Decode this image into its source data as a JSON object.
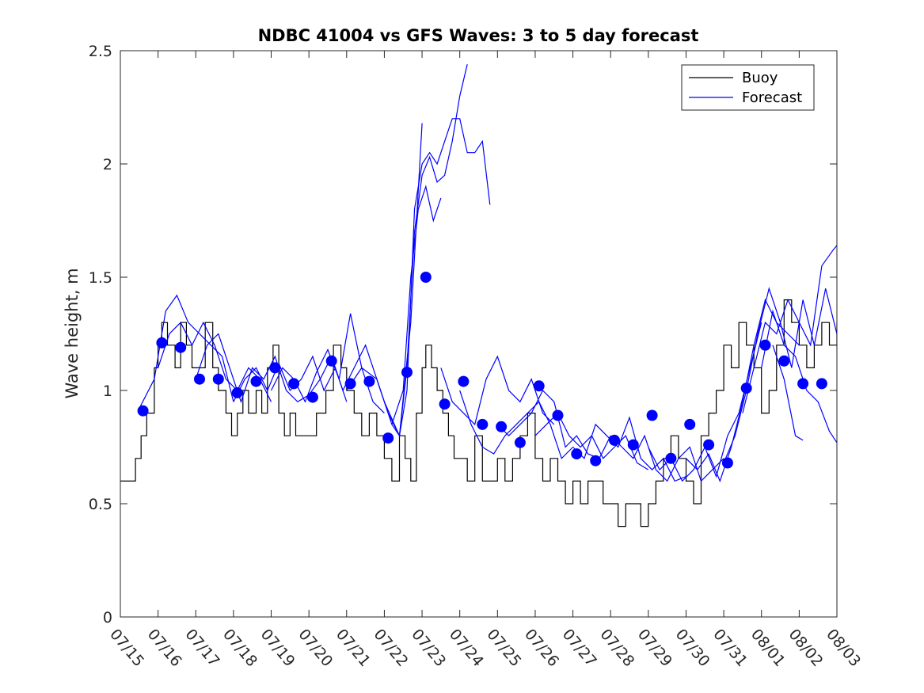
{
  "chart_data": {
    "type": "line",
    "title": "NDBC 41004 vs GFS Waves: 3 to 5 day forecast",
    "xlabel": "",
    "ylabel": "Wave height, m",
    "ylim": [
      0,
      2.5
    ],
    "xlim": [
      "07/15",
      "08/03"
    ],
    "yticks": [
      "0",
      "0.5",
      "1",
      "1.5",
      "2",
      "2.5"
    ],
    "xticks": [
      "07/15",
      "07/16",
      "07/17",
      "07/18",
      "07/19",
      "07/20",
      "07/21",
      "07/22",
      "07/23",
      "07/24",
      "07/25",
      "07/26",
      "07/27",
      "07/28",
      "07/29",
      "07/30",
      "07/31",
      "08/01",
      "08/02",
      "08/03"
    ],
    "legend": {
      "position": "top-right",
      "entries": [
        "Buoy",
        "Forecast"
      ]
    },
    "colors": {
      "buoy": "#000000",
      "forecast": "#0000ff"
    },
    "series": [
      {
        "name": "Buoy",
        "style": "line",
        "x_day": [
          0,
          0.25,
          0.4,
          0.55,
          0.7,
          0.9,
          1.0,
          1.1,
          1.25,
          1.45,
          1.6,
          1.75,
          1.9,
          2.05,
          2.25,
          2.45,
          2.6,
          2.8,
          2.95,
          3.1,
          3.25,
          3.4,
          3.6,
          3.75,
          3.9,
          4.05,
          4.2,
          4.35,
          4.5,
          4.65,
          4.8,
          5.0,
          5.2,
          5.45,
          5.65,
          5.85,
          6.0,
          6.2,
          6.4,
          6.6,
          6.8,
          7.0,
          7.2,
          7.4,
          7.55,
          7.7,
          7.85,
          8.0,
          8.1,
          8.25,
          8.4,
          8.55,
          8.7,
          8.85,
          9.0,
          9.2,
          9.4,
          9.6,
          9.8,
          10.0,
          10.2,
          10.4,
          10.6,
          10.8,
          11.0,
          11.2,
          11.4,
          11.6,
          11.8,
          12.0,
          12.2,
          12.4,
          12.6,
          12.8,
          13.0,
          13.2,
          13.4,
          13.6,
          13.8,
          14.0,
          14.2,
          14.4,
          14.6,
          14.8,
          15.0,
          15.2,
          15.4,
          15.6,
          15.8,
          16.0,
          16.2,
          16.4,
          16.6,
          16.8,
          17.0,
          17.2,
          17.4,
          17.6,
          17.8,
          18.0,
          18.2,
          18.4,
          18.6,
          18.8,
          19.0
        ],
        "y": [
          0.6,
          0.6,
          0.7,
          0.8,
          0.9,
          1.1,
          1.2,
          1.3,
          1.2,
          1.1,
          1.3,
          1.2,
          1.1,
          1.1,
          1.3,
          1.1,
          1.0,
          0.9,
          0.8,
          0.9,
          1.0,
          0.9,
          1.0,
          0.9,
          1.1,
          1.2,
          0.9,
          0.8,
          0.9,
          0.8,
          0.8,
          0.8,
          0.9,
          1.0,
          1.2,
          1.1,
          1.0,
          0.9,
          0.8,
          0.9,
          0.8,
          0.7,
          0.6,
          0.8,
          0.7,
          0.6,
          0.9,
          1.1,
          1.2,
          1.1,
          1.0,
          0.9,
          0.8,
          0.7,
          0.7,
          0.6,
          0.8,
          0.6,
          0.6,
          0.7,
          0.6,
          0.7,
          0.8,
          0.9,
          0.7,
          0.6,
          0.7,
          0.6,
          0.5,
          0.6,
          0.5,
          0.6,
          0.6,
          0.5,
          0.5,
          0.4,
          0.5,
          0.5,
          0.4,
          0.5,
          0.6,
          0.7,
          0.8,
          0.7,
          0.6,
          0.5,
          0.8,
          0.9,
          1.0,
          1.2,
          1.1,
          1.3,
          1.2,
          1.1,
          0.9,
          1.0,
          1.2,
          1.4,
          1.3,
          1.2,
          1.1,
          1.2,
          1.3,
          1.2,
          1.3
        ]
      },
      {
        "name": "Forecast",
        "style": "line",
        "runs": [
          {
            "x_day": [
              0.5,
              0.9,
              1.2,
              1.5,
              1.8,
              2.1,
              2.4,
              2.7,
              3.0
            ],
            "y": [
              0.92,
              1.05,
              1.35,
              1.42,
              1.3,
              1.25,
              1.2,
              1.15,
              0.95
            ]
          },
          {
            "x_day": [
              1.0,
              1.3,
              1.6,
              1.9,
              2.2,
              2.5,
              2.8,
              3.1,
              3.4,
              3.7,
              4.0
            ],
            "y": [
              1.1,
              1.25,
              1.3,
              1.2,
              1.3,
              1.2,
              1.05,
              1.0,
              1.1,
              1.05,
              0.95
            ]
          },
          {
            "x_day": [
              2.0,
              2.3,
              2.6,
              2.9,
              3.2,
              3.5,
              3.8,
              4.1,
              4.4,
              4.7,
              5.0
            ],
            "y": [
              1.05,
              1.2,
              1.25,
              1.1,
              0.95,
              1.1,
              1.05,
              1.15,
              1.0,
              0.95,
              0.98
            ]
          },
          {
            "x_day": [
              3.0,
              3.3,
              3.6,
              3.9,
              4.2,
              4.5,
              4.8,
              5.1,
              5.4,
              5.7,
              6.0
            ],
            "y": [
              0.95,
              1.05,
              1.1,
              1.0,
              1.12,
              1.0,
              1.05,
              1.15,
              1.0,
              1.1,
              0.95
            ]
          },
          {
            "x_day": [
              4.0,
              4.3,
              4.6,
              4.9,
              5.2,
              5.5,
              5.8,
              6.1,
              6.4,
              6.7,
              7.0
            ],
            "y": [
              1.0,
              1.1,
              1.05,
              0.95,
              1.08,
              1.18,
              1.05,
              1.34,
              1.1,
              0.95,
              0.9
            ]
          },
          {
            "x_day": [
              5.0,
              5.3,
              5.6,
              5.9,
              6.2,
              6.5,
              6.8,
              7.1,
              7.4,
              7.7,
              8.0
            ],
            "y": [
              0.98,
              1.05,
              1.15,
              1.0,
              1.1,
              1.2,
              1.05,
              0.9,
              0.8,
              1.3,
              2.18
            ]
          },
          {
            "x_day": [
              6.0,
              6.4,
              6.8,
              7.2,
              7.4,
              7.6,
              7.8,
              8.0,
              8.2,
              8.4,
              8.6,
              8.8,
              9.0,
              9.2,
              9.4,
              9.6,
              9.8,
              10.0
            ],
            "y": [
              1.0,
              1.1,
              1.05,
              0.85,
              0.8,
              1.0,
              1.8,
              2.0,
              2.05,
              2.0,
              2.1,
              2.2,
              2.2,
              2.05,
              2.05,
              2.1,
              1.82,
              null
            ]
          },
          {
            "x_day": [
              7.0,
              7.4,
              7.6,
              7.8,
              8.0,
              8.2,
              8.4,
              8.6,
              8.8,
              9.0,
              9.2
            ],
            "y": [
              0.95,
              0.8,
              1.1,
              1.7,
              1.95,
              2.03,
              1.92,
              1.95,
              2.1,
              2.3,
              2.44
            ]
          },
          {
            "x_day": [
              7.2,
              7.5,
              7.7,
              7.9,
              8.1,
              8.3,
              8.5
            ],
            "y": [
              0.85,
              1.0,
              1.5,
              1.8,
              1.9,
              1.75,
              1.85
            ]
          },
          {
            "x_day": [
              8.5,
              8.8,
              9.1,
              9.4,
              9.7,
              10.0,
              10.3,
              10.6,
              10.9,
              11.2,
              11.5
            ],
            "y": [
              1.1,
              0.95,
              0.9,
              0.85,
              1.05,
              1.15,
              1.0,
              0.95,
              1.05,
              0.9,
              0.85
            ]
          },
          {
            "x_day": [
              9.0,
              9.3,
              9.6,
              9.9,
              10.2,
              10.5,
              10.8,
              11.1,
              11.4,
              11.7,
              12.0
            ],
            "y": [
              1.0,
              0.85,
              0.75,
              0.72,
              0.8,
              0.85,
              0.9,
              0.95,
              0.85,
              0.7,
              0.75
            ]
          },
          {
            "x_day": [
              10.0,
              10.3,
              10.6,
              10.9,
              11.2,
              11.5,
              11.8,
              12.1,
              12.4,
              12.7,
              13.0
            ],
            "y": [
              0.85,
              0.8,
              0.85,
              0.9,
              1.0,
              0.95,
              0.75,
              0.8,
              0.72,
              0.7,
              0.8
            ]
          },
          {
            "x_day": [
              11.0,
              11.3,
              11.6,
              11.9,
              12.2,
              12.5,
              12.8,
              13.1,
              13.4,
              13.7,
              14.0
            ],
            "y": [
              0.8,
              0.85,
              0.9,
              0.8,
              0.75,
              0.8,
              0.7,
              0.75,
              0.8,
              0.68,
              0.65
            ]
          },
          {
            "x_day": [
              12.0,
              12.3,
              12.6,
              12.9,
              13.2,
              13.5,
              13.8,
              14.1,
              14.4,
              14.7,
              15.0
            ],
            "y": [
              0.75,
              0.7,
              0.85,
              0.8,
              0.75,
              0.88,
              0.7,
              0.65,
              0.7,
              0.6,
              0.62
            ]
          },
          {
            "x_day": [
              13.0,
              13.3,
              13.6,
              13.9,
              14.2,
              14.5,
              14.8,
              15.1,
              15.4,
              15.7,
              16.0
            ],
            "y": [
              0.8,
              0.75,
              0.7,
              0.8,
              0.65,
              0.6,
              0.7,
              0.75,
              0.6,
              0.65,
              0.7
            ]
          },
          {
            "x_day": [
              14.0,
              14.3,
              14.6,
              14.9,
              15.2,
              15.5,
              15.8,
              16.1,
              16.4,
              16.7,
              17.0
            ],
            "y": [
              0.75,
              0.65,
              0.7,
              0.6,
              0.65,
              0.75,
              0.62,
              0.8,
              0.9,
              1.1,
              1.3
            ]
          },
          {
            "x_day": [
              15.0,
              15.3,
              15.6,
              15.9,
              16.2,
              16.5,
              16.8,
              17.1,
              17.4,
              17.7,
              18.0
            ],
            "y": [
              0.7,
              0.65,
              0.72,
              0.6,
              0.75,
              0.95,
              1.2,
              1.4,
              1.3,
              1.25,
              1.2
            ]
          },
          {
            "x_day": [
              16.0,
              16.3,
              16.6,
              16.9,
              17.2,
              17.5,
              17.8,
              18.1,
              18.4,
              18.7,
              19.0
            ],
            "y": [
              0.68,
              0.8,
              1.0,
              1.25,
              1.45,
              1.3,
              1.1,
              1.4,
              1.2,
              1.45,
              1.25
            ]
          },
          {
            "x_day": [
              16.5,
              16.8,
              17.1,
              17.4,
              17.7,
              18.0,
              18.3,
              18.6,
              18.9,
              19.0
            ],
            "y": [
              0.9,
              1.1,
              1.3,
              1.25,
              1.4,
              1.3,
              1.2,
              1.55,
              1.62,
              1.64
            ]
          },
          {
            "x_day": [
              17.0,
              17.3,
              17.6,
              17.9,
              18.2,
              18.5,
              18.8,
              19.0
            ],
            "y": [
              1.1,
              1.35,
              1.2,
              1.15,
              1.0,
              0.95,
              0.82,
              0.77
            ]
          },
          {
            "x_day": [
              17.3,
              17.6,
              17.9,
              18.1
            ],
            "y": [
              1.2,
              1.05,
              0.8,
              0.78
            ]
          }
        ]
      },
      {
        "name": "",
        "style": "scatter",
        "x_day": [
          0.6,
          1.1,
          1.6,
          2.1,
          2.6,
          3.1,
          3.6,
          4.1,
          4.6,
          5.1,
          5.6,
          6.1,
          6.6,
          7.1,
          7.6,
          8.1,
          8.6,
          9.1,
          9.6,
          10.1,
          10.6,
          11.1,
          11.6,
          12.1,
          12.6,
          13.1,
          13.6,
          14.1,
          14.6,
          15.1,
          15.6,
          16.1,
          16.6,
          17.1,
          17.6,
          18.1,
          18.6
        ],
        "y": [
          0.91,
          1.21,
          1.19,
          1.05,
          1.05,
          0.99,
          1.04,
          1.1,
          1.03,
          0.97,
          1.13,
          1.03,
          1.04,
          0.79,
          1.08,
          1.5,
          0.94,
          1.04,
          0.85,
          0.84,
          0.77,
          1.02,
          0.89,
          0.72,
          0.69,
          0.78,
          0.76,
          0.89,
          0.7,
          0.85,
          0.76,
          0.68,
          1.01,
          1.2,
          1.13,
          1.03,
          1.03
        ]
      }
    ]
  }
}
